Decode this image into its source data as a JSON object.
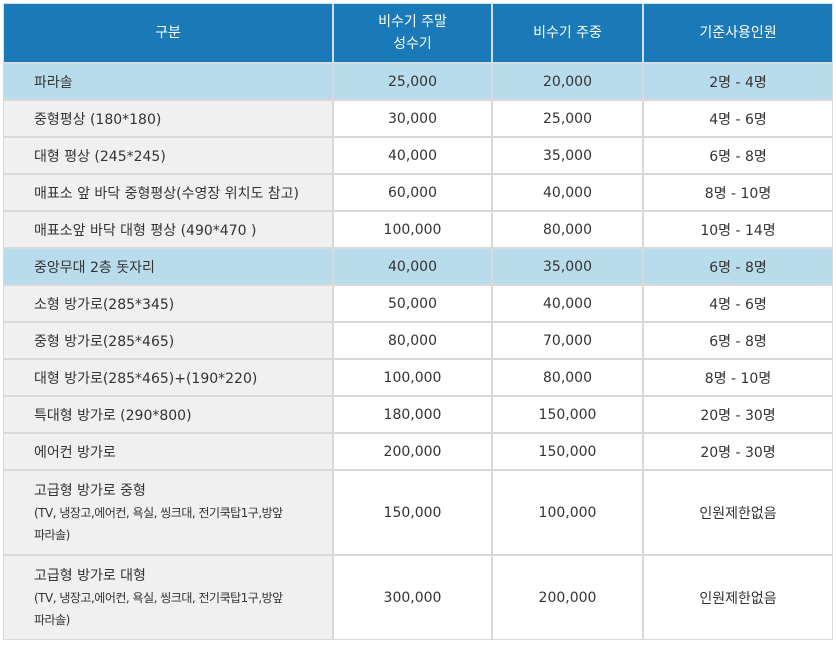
{
  "header": {
    "col1": "구분",
    "col2_line1": "비수기 주말",
    "col2_line2": "성수기",
    "col3": "비수기 주중",
    "col4": "기준사용인원"
  },
  "rows": [
    {
      "name": "파라솔",
      "weekend": "25,000",
      "weekday": "20,000",
      "capacity": "2명 - 4명"
    },
    {
      "name": "중형평상 (180*180)",
      "weekend": "30,000",
      "weekday": "25,000",
      "capacity": "4명 - 6명"
    },
    {
      "name": "대형 평상 (245*245)",
      "weekend": "40,000",
      "weekday": "35,000",
      "capacity": "6명 - 8명"
    },
    {
      "name": "매표소 앞 바닥 중형평상(수영장 위치도 참고)",
      "weekend": "60,000",
      "weekday": "40,000",
      "capacity": "8명 - 10명"
    },
    {
      "name": "매표소앞 바닥 대형 평상 (490*470 )",
      "weekend": "100,000",
      "weekday": "80,000",
      "capacity": "10명 - 14명"
    },
    {
      "name": "중앙무대 2층 돗자리",
      "weekend": "40,000",
      "weekday": "35,000",
      "capacity": "6명 - 8명"
    },
    {
      "name": "소형 방가로(285*345)",
      "weekend": "50,000",
      "weekday": "40,000",
      "capacity": "4명 - 6명"
    },
    {
      "name": "중형 방가로(285*465)",
      "weekend": "80,000",
      "weekday": "70,000",
      "capacity": "6명 - 8명"
    },
    {
      "name": "대형 방가로(285*465)+(190*220)",
      "weekend": "100,000",
      "weekday": "80,000",
      "capacity": "8명 - 10명"
    },
    {
      "name": "특대형 방가로 (290*800)",
      "weekend": "180,000",
      "weekday": "150,000",
      "capacity": "20명 - 30명"
    },
    {
      "name": "에어컨 방가로",
      "weekend": "200,000",
      "weekday": "150,000",
      "capacity": "20명 - 30명"
    },
    {
      "name": "고급형 방가로 중형",
      "name_sub1": "(TV, 냉장고,에어컨, 욕실, 씽크대, 전기쿡탑1구,방앞",
      "name_sub2": "파라솔)",
      "weekend": "150,000",
      "weekday": "100,000",
      "capacity": "인원제한없음"
    },
    {
      "name": "고급형 방가로 대형",
      "name_sub1": "(TV, 냉장고,에어컨, 욕실, 씽크대, 전기쿡탑1구,방앞",
      "name_sub2": "파라솔)",
      "weekend": "300,000",
      "weekday": "200,000",
      "capacity": "인원제한없음"
    }
  ]
}
